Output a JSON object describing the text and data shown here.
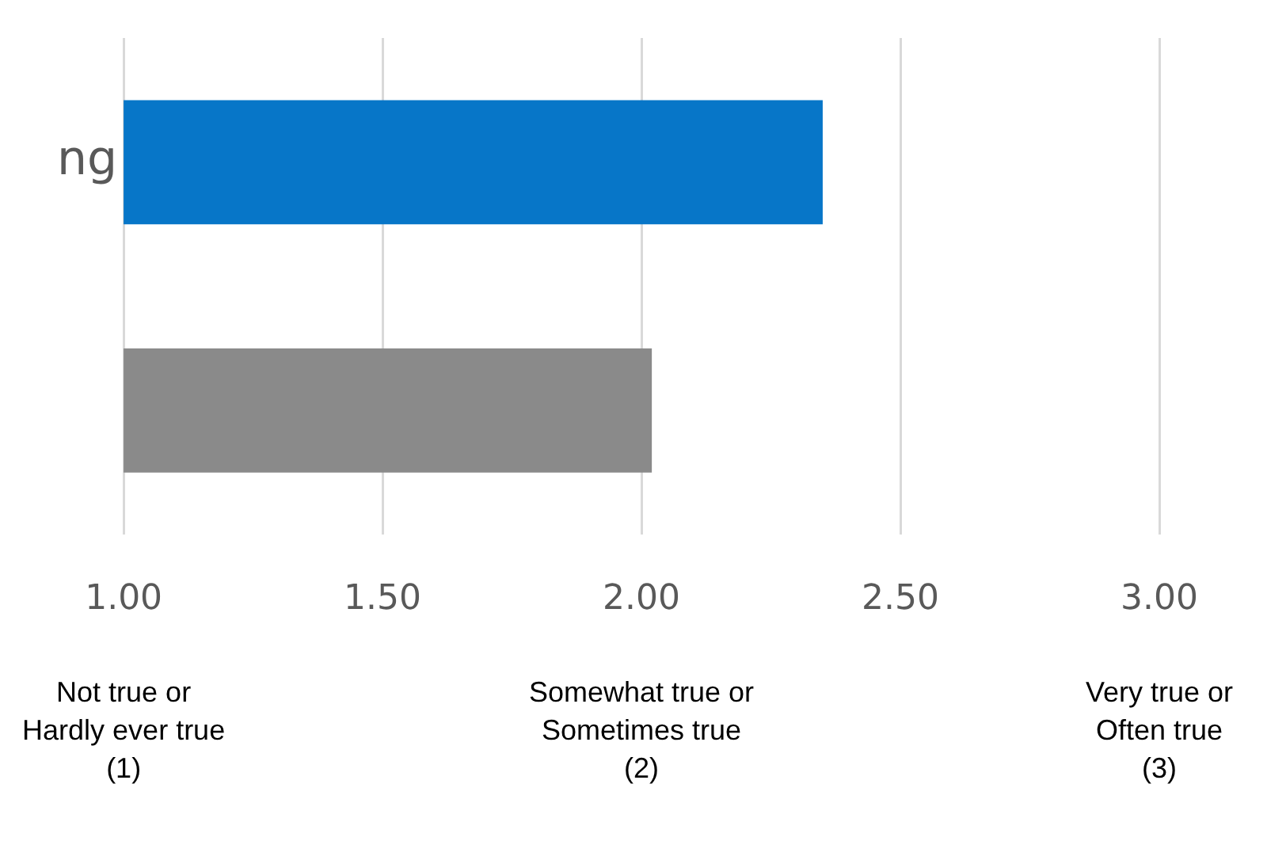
{
  "chart_data": {
    "type": "bar",
    "orientation": "horizontal",
    "categories": [
      "ng",
      null
    ],
    "values": [
      2.35,
      2.02
    ],
    "colors": [
      "#0776c8",
      "#8a8a8a"
    ],
    "xlim": [
      1,
      3
    ],
    "xticks": [
      {
        "value": 1,
        "label": "1.00"
      },
      {
        "value": 1.5,
        "label": "1.50"
      },
      {
        "value": 2,
        "label": "2.00"
      },
      {
        "value": 2.5,
        "label": "2.50"
      },
      {
        "value": 3,
        "label": "3.00"
      }
    ],
    "grid": "x",
    "legend": false,
    "annotations": [
      "Not true or\nHardly ever true\n(1)",
      "Somewhat true or\nSometimes true\n(2)",
      "Very true or\nOften true\n(3)"
    ]
  }
}
